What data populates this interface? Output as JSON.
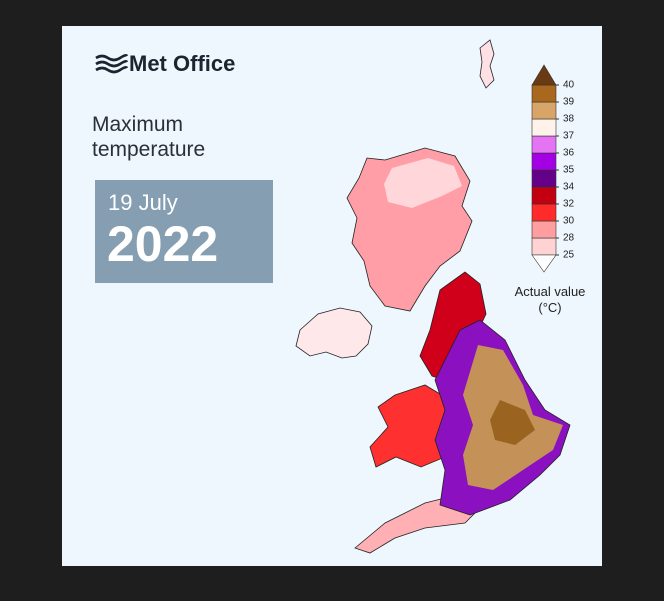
{
  "header": {
    "logo": "Met Office"
  },
  "title": "Maximum temperature",
  "date": {
    "day": "19 July",
    "year": "2022"
  },
  "legend": {
    "title": "Actual value (°C)",
    "ticks": [
      25,
      28,
      30,
      32,
      34,
      35,
      36,
      37,
      38,
      39,
      40
    ],
    "colors": [
      "#ffd2d4",
      "#ff9ea0",
      "#ff2a2a",
      "#c20010",
      "#650088",
      "#a400e4",
      "#e474f4",
      "#fff2ea",
      "#d8a468",
      "#a8681e"
    ],
    "under_color": "#ffffff",
    "over_color": "#6a3a12"
  }
}
